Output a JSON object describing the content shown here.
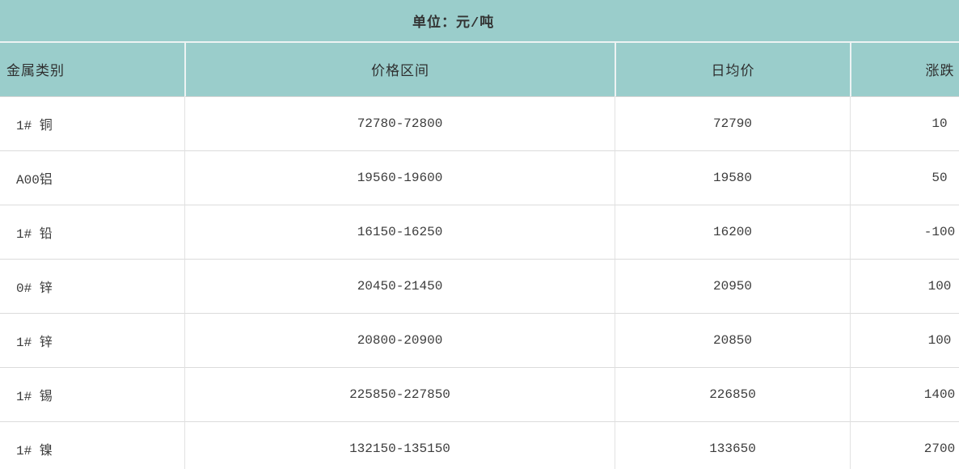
{
  "chart_data": {
    "type": "table",
    "title": "单位：元/吨",
    "columns": [
      "金属类别",
      "价格区间",
      "日均价",
      "涨跌"
    ],
    "rows": [
      [
        "1# 铜",
        "72780-72800",
        "72790",
        "10"
      ],
      [
        "A00铝",
        "19560-19600",
        "19580",
        "50"
      ],
      [
        "1# 铅",
        "16150-16250",
        "16200",
        "-100"
      ],
      [
        "0# 锌",
        "20450-21450",
        "20950",
        "100"
      ],
      [
        "1# 锌",
        "20800-20900",
        "20850",
        "100"
      ],
      [
        "1# 锡",
        "225850-227850",
        "226850",
        "1400"
      ],
      [
        "1# 镍",
        "132150-135150",
        "133650",
        "2700"
      ]
    ]
  },
  "colors": {
    "header_background": "#9acdcb",
    "header_divider": "#edf3f3",
    "body_row_border": "#dcdcdc",
    "body_column_border": "#e2e2e2",
    "text": "#3c3c3c",
    "background": "#ffffff"
  }
}
